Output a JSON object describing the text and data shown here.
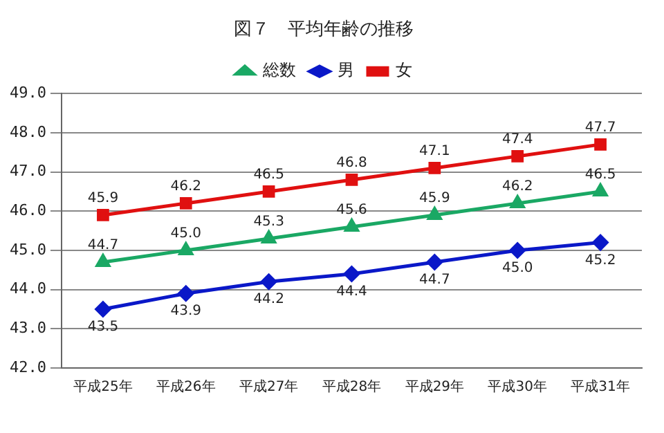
{
  "chart_data": {
    "type": "line",
    "title": "図７　平均年齢の推移",
    "categories": [
      "平成25年",
      "平成26年",
      "平成27年",
      "平成28年",
      "平成29年",
      "平成30年",
      "平成31年"
    ],
    "series": [
      {
        "name": "総数",
        "color": "#1aa864",
        "marker": "triangle",
        "values": [
          44.7,
          45.0,
          45.3,
          45.6,
          45.9,
          46.2,
          46.5
        ],
        "value_labels": [
          "44.7",
          "45.0",
          "45.3",
          "45.6",
          "45.9",
          "46.2",
          "46.5"
        ]
      },
      {
        "name": "男",
        "color": "#0a18c8",
        "marker": "diamond",
        "values": [
          43.5,
          43.9,
          44.2,
          44.4,
          44.7,
          45.0,
          45.2
        ],
        "value_labels": [
          "43.5",
          "43.9",
          "44.2",
          "44.4",
          "44.7",
          "45.0",
          "45.2"
        ]
      },
      {
        "name": "女",
        "color": "#e01010",
        "marker": "square",
        "values": [
          45.9,
          46.2,
          46.5,
          46.8,
          47.1,
          47.4,
          47.7
        ],
        "value_labels": [
          "45.9",
          "46.2",
          "46.5",
          "46.8",
          "47.1",
          "47.4",
          "47.7"
        ]
      }
    ],
    "ylim": [
      42,
      49
    ],
    "yticks": [
      {
        "value": 42,
        "label": "42.0"
      },
      {
        "value": 43,
        "label": "43.0"
      },
      {
        "value": 44,
        "label": "44.0"
      },
      {
        "value": 45,
        "label": "45.0"
      },
      {
        "value": 46,
        "label": "46.0"
      },
      {
        "value": 47,
        "label": "47.0"
      },
      {
        "value": 48,
        "label": "48.0"
      },
      {
        "value": 49,
        "label": "49.0"
      }
    ],
    "grid": "y",
    "legend": "top",
    "line_style": "solid"
  }
}
